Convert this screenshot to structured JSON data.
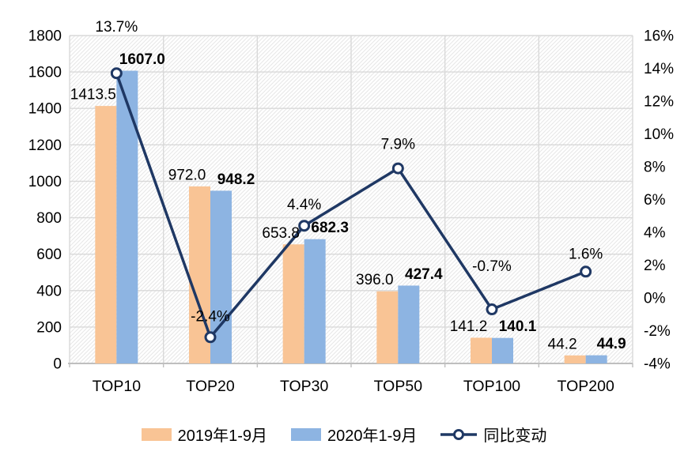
{
  "chart_data": {
    "type": "bar",
    "subtype": "combo-bar-line-dual-axis",
    "title": "",
    "categories": [
      "TOP10",
      "TOP20",
      "TOP30",
      "TOP50",
      "TOP100",
      "TOP200"
    ],
    "series": [
      {
        "name": "2019年1-9月",
        "chart_type": "bar",
        "axis": "left",
        "color": "#F9C495",
        "values": [
          1413.5,
          972.0,
          653.8,
          396.0,
          141.2,
          44.2
        ],
        "labels": [
          "1413.5",
          "972.0",
          "653.8",
          "396.0",
          "141.2",
          "44.2"
        ],
        "bold_labels": false
      },
      {
        "name": "2020年1-9月",
        "chart_type": "bar",
        "axis": "left",
        "color": "#8DB4E2",
        "values": [
          1607.0,
          948.2,
          682.3,
          427.4,
          140.1,
          44.9
        ],
        "labels": [
          "1607.0",
          "948.2",
          "682.3",
          "427.4",
          "140.1",
          "44.9"
        ],
        "bold_labels": true
      },
      {
        "name": "同比变动",
        "chart_type": "line",
        "axis": "right",
        "color": "#1F3864",
        "marker": "open-circle",
        "values": [
          13.7,
          -2.4,
          4.4,
          7.9,
          -0.7,
          1.6
        ],
        "labels": [
          "13.7%",
          "-2.4%",
          "4.4%",
          "7.9%",
          "-0.7%",
          "1.6%"
        ],
        "bold_labels": false
      }
    ],
    "left_axis": {
      "min": 0,
      "max": 1800,
      "step": 200,
      "tick_labels": [
        "0",
        "200",
        "400",
        "600",
        "800",
        "1000",
        "1200",
        "1400",
        "1600",
        "1800"
      ]
    },
    "right_axis": {
      "min": -4,
      "max": 16,
      "step": 2,
      "tick_labels": [
        "-4%",
        "-2%",
        "0%",
        "2%",
        "4%",
        "6%",
        "8%",
        "10%",
        "12%",
        "14%",
        "16%"
      ]
    },
    "grid": true,
    "plot_background": "diagonal-hatch",
    "legend_position": "bottom",
    "colors": {
      "grid": "#D9D9D9",
      "axis_line": "#BFBFBF",
      "hatch": "#E7E7E7",
      "text": "#000000",
      "marker_fill": "#FFFFFF"
    },
    "layout_hints": {
      "bar_label_dx": [
        -16,
        19
      ],
      "bar_label_dy": -15,
      "pct_label_dy": [
        -59,
        -27,
        -27,
        -31,
        -55,
        -23
      ],
      "font_size_labels": 19,
      "font_size_axis": 19,
      "font_size_categories": 19.5
    }
  }
}
